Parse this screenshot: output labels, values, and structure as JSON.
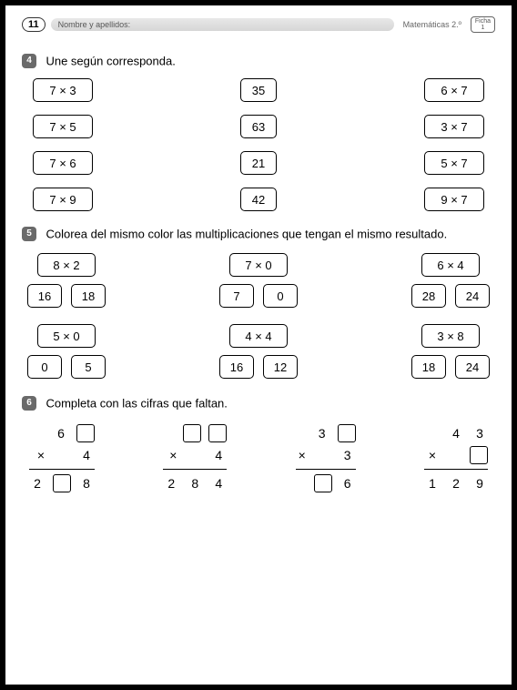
{
  "header": {
    "page": "11",
    "name_label": "Nombre y apellidos:",
    "subject": "Matemáticas  2.º",
    "ficha_top": "Ficha",
    "ficha_num": "1"
  },
  "ex4": {
    "num": "4",
    "title": "Une según corresponda.",
    "rows": [
      {
        "l": "7 × 3",
        "m": "35",
        "r": "6 × 7"
      },
      {
        "l": "7 × 5",
        "m": "63",
        "r": "3 × 7"
      },
      {
        "l": "7 × 6",
        "m": "21",
        "r": "5 × 7"
      },
      {
        "l": "7 × 9",
        "m": "42",
        "r": "9 × 7"
      }
    ]
  },
  "ex5": {
    "num": "5",
    "title": "Colorea del mismo color las multiplicaciones que tengan el mismo resultado.",
    "groups1": [
      {
        "top": "8 × 2",
        "a": "16",
        "b": "18"
      },
      {
        "top": "7 × 0",
        "a": "7",
        "b": "0"
      },
      {
        "top": "6 × 4",
        "a": "28",
        "b": "24"
      }
    ],
    "groups2": [
      {
        "top": "5 × 0",
        "a": "0",
        "b": "5"
      },
      {
        "top": "4 × 4",
        "a": "16",
        "b": "12"
      },
      {
        "top": "3 × 8",
        "a": "18",
        "b": "24"
      }
    ]
  },
  "ex6": {
    "num": "6",
    "title": "Completa con las cifras que faltan.",
    "problems": [
      {
        "top": [
          "6",
          null
        ],
        "mid": "4",
        "bot": [
          "2",
          null,
          "8"
        ]
      },
      {
        "top": [
          null,
          null
        ],
        "mid": "4",
        "bot": [
          "2",
          "8",
          "4"
        ]
      },
      {
        "top": [
          "3",
          null
        ],
        "mid": "3",
        "bot": [
          null,
          "6"
        ]
      },
      {
        "top": [
          "4",
          "3"
        ],
        "mid": null,
        "bot": [
          "1",
          "2",
          "9"
        ]
      }
    ]
  }
}
